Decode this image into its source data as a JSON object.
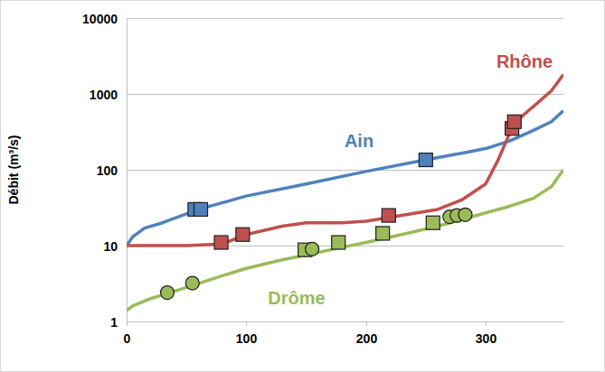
{
  "chart_data": {
    "type": "line",
    "y_label": "Débit (m³/s)",
    "log": "y",
    "grid": true,
    "xlim": [
      0,
      365
    ],
    "xticks": [
      0,
      100,
      200,
      300
    ],
    "ylim": [
      1,
      10000
    ],
    "yticks": [
      1,
      10,
      100,
      1000,
      10000
    ],
    "series": [
      {
        "name": "Ain",
        "type": "line",
        "color": "#4f81bd",
        "x": [
          0,
          5,
          15,
          30,
          60,
          100,
          150,
          200,
          250,
          280,
          300,
          320,
          340,
          355,
          365
        ],
        "values": [
          10,
          13,
          17,
          20,
          30,
          45,
          65,
          95,
          135,
          165,
          190,
          240,
          330,
          430,
          600
        ]
      },
      {
        "name": "Rhône",
        "type": "line",
        "color": "#c0504d",
        "x": [
          0,
          50,
          80,
          100,
          130,
          150,
          180,
          200,
          230,
          260,
          280,
          300,
          310,
          320,
          330,
          345,
          355,
          365
        ],
        "values": [
          10,
          10,
          10.5,
          14,
          18,
          20,
          20,
          21,
          25,
          30,
          40,
          65,
          130,
          300,
          500,
          800,
          1100,
          1800
        ]
      },
      {
        "name": "Drôme",
        "type": "line",
        "color": "#9bbb59",
        "x": [
          0,
          5,
          20,
          50,
          80,
          100,
          130,
          150,
          180,
          200,
          230,
          260,
          280,
          300,
          320,
          340,
          355,
          365
        ],
        "values": [
          1.4,
          1.6,
          2,
          2.8,
          4,
          5,
          6.5,
          7.5,
          9.5,
          11,
          14,
          18,
          22,
          27,
          33,
          42,
          60,
          100
        ]
      },
      {
        "type": "scatter",
        "marker": "square",
        "color": "#4f81bd",
        "x": [
          57,
          62,
          250
        ],
        "values": [
          30,
          30,
          135
        ]
      },
      {
        "type": "scatter",
        "marker": "square",
        "color": "#c0504d",
        "x": [
          79,
          97,
          219,
          322,
          324
        ],
        "values": [
          11,
          14,
          25,
          350,
          430
        ]
      },
      {
        "type": "scatter",
        "marker": "square",
        "color": "#9bbb59",
        "x": [
          149,
          177,
          214,
          256
        ],
        "values": [
          8.8,
          11,
          14.5,
          20
        ]
      },
      {
        "type": "scatter",
        "marker": "circle",
        "color": "#9bbb59",
        "x": [
          34,
          55,
          155,
          270,
          276,
          283
        ],
        "values": [
          2.4,
          3.2,
          9,
          24,
          25,
          25.5
        ]
      }
    ]
  }
}
